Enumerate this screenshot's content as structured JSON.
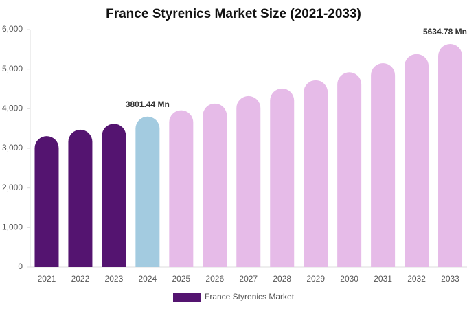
{
  "chart_data": {
    "type": "bar",
    "title": "France Styrenics Market Size (2021-2033)",
    "categories": [
      "2021",
      "2022",
      "2023",
      "2024",
      "2025",
      "2026",
      "2027",
      "2028",
      "2029",
      "2030",
      "2031",
      "2032",
      "2033"
    ],
    "series": [
      {
        "name": "France Styrenics Market",
        "color": "#541470",
        "colors": [
          "#541470",
          "#541470",
          "#541470",
          "#a3cbe0",
          "#e6bbe8",
          "#e6bbe8",
          "#e6bbe8",
          "#e6bbe8",
          "#e6bbe8",
          "#e6bbe8",
          "#e6bbe8",
          "#e6bbe8",
          "#e6bbe8"
        ],
        "values": [
          3310,
          3470,
          3620,
          3801.44,
          3960,
          4130,
          4320,
          4510,
          4720,
          4920,
          5150,
          5380,
          5634.78
        ],
        "value_labels": [
          null,
          null,
          null,
          "3801.44 Mn",
          null,
          null,
          null,
          null,
          null,
          null,
          null,
          null,
          "5634.78 Mn"
        ]
      }
    ],
    "ylim": [
      0,
      6000
    ],
    "yticks": [
      0,
      {
        "value": 1000,
        "label": "1,000"
      },
      {
        "value": 2000,
        "label": "2,000"
      },
      {
        "value": 3000,
        "label": "3,000"
      },
      {
        "value": 4000,
        "label": "4,000"
      },
      {
        "value": 5000,
        "label": "5,000"
      },
      {
        "value": 6000,
        "label": "6,000"
      }
    ],
    "grid": false,
    "legend": "bottom"
  }
}
